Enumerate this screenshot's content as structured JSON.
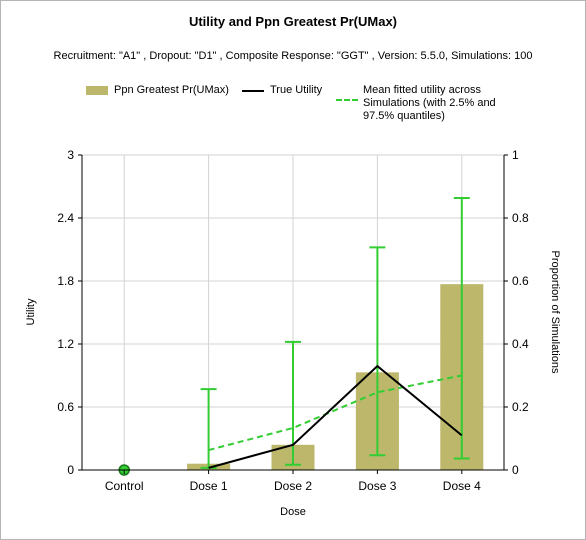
{
  "chart_data": {
    "type": "bar",
    "title": "Utility and Ppn Greatest Pr(UMax)",
    "subtitle": "Recruitment: \"A1\" , Dropout: \"D1\" , Composite Response: \"GGT\" , Version: 5.5.0, Simulations: 100",
    "xlabel": "Dose",
    "ylabel": "Utility",
    "y2label": "Proportion of Simulations",
    "categories": [
      "Control",
      "Dose 1",
      "Dose 2",
      "Dose 3",
      "Dose 4"
    ],
    "ylim": [
      0,
      3
    ],
    "yticks": [
      "0",
      "0.6",
      "1.2",
      "1.8",
      "2.4",
      "3"
    ],
    "ytick_values": [
      0,
      0.6,
      1.2,
      1.8,
      2.4,
      3
    ],
    "y2lim": [
      0,
      1
    ],
    "y2ticks": [
      "0",
      "0.2",
      "0.4",
      "0.6",
      "0.8",
      "1"
    ],
    "y2tick_values": [
      0,
      0.2,
      0.4,
      0.6,
      0.8,
      1
    ],
    "grid": true,
    "legend_position": "top",
    "series": [
      {
        "name": "Ppn Greatest Pr(UMax)",
        "type": "bar",
        "axis": "right",
        "color": "#bdb76b",
        "values": [
          0,
          0.02,
          0.08,
          0.31,
          0.59
        ]
      },
      {
        "name": "True Utility",
        "type": "line",
        "axis": "left",
        "color": "#000000",
        "values": [
          0,
          0.02,
          0.24,
          0.99,
          0.33
        ]
      },
      {
        "name": "Mean fitted utility across Simulations (with 2.5% and 97.5% quantiles)",
        "type": "line",
        "style": "dashed",
        "axis": "left",
        "color": "#32cd32",
        "values": [
          0,
          0.19,
          0.4,
          0.74,
          0.9
        ],
        "lower": [
          0,
          0.02,
          0.05,
          0.14,
          0.11
        ],
        "upper": [
          0,
          0.77,
          1.22,
          2.12,
          2.59
        ]
      }
    ],
    "markers": [
      {
        "category": "Control",
        "value": 0,
        "color": "#32cd32"
      }
    ]
  },
  "legend": {
    "bar_label": "Ppn Greatest Pr(UMax)",
    "true_label": "True Utility",
    "fitted_label_lines": [
      "Mean fitted utility across",
      "Simulations (with 2.5% and",
      "97.5% quantiles)"
    ]
  }
}
